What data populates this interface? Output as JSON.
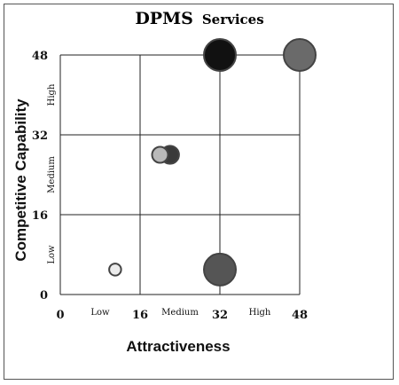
{
  "chart_data": {
    "type": "scatter",
    "title": "DPMS",
    "subtitle": "Services",
    "xlabel": "Attractiveness",
    "ylabel": "Competitive Capability",
    "xlim": [
      0,
      48
    ],
    "ylim": [
      0,
      48
    ],
    "x_ticks": [
      "0",
      "16",
      "32",
      "48"
    ],
    "y_ticks": [
      "0",
      "16",
      "32",
      "48"
    ],
    "x_bands": [
      "Low",
      "Medium",
      "High"
    ],
    "y_bands": [
      "Low",
      "Medium",
      "High"
    ],
    "grid": true,
    "points": [
      {
        "x": 32,
        "y": 48,
        "size": 3.2,
        "color": "#111111"
      },
      {
        "x": 48,
        "y": 48,
        "size": 3.2,
        "color": "#6a6a6a"
      },
      {
        "x": 22,
        "y": 28,
        "size": 1.8,
        "color": "#3a3a3a"
      },
      {
        "x": 20,
        "y": 28,
        "size": 1.6,
        "color": "#b9b9b9"
      },
      {
        "x": 32,
        "y": 5,
        "size": 3.2,
        "color": "#555555"
      },
      {
        "x": 11,
        "y": 5,
        "size": 1.2,
        "color": "#ececec"
      }
    ]
  }
}
